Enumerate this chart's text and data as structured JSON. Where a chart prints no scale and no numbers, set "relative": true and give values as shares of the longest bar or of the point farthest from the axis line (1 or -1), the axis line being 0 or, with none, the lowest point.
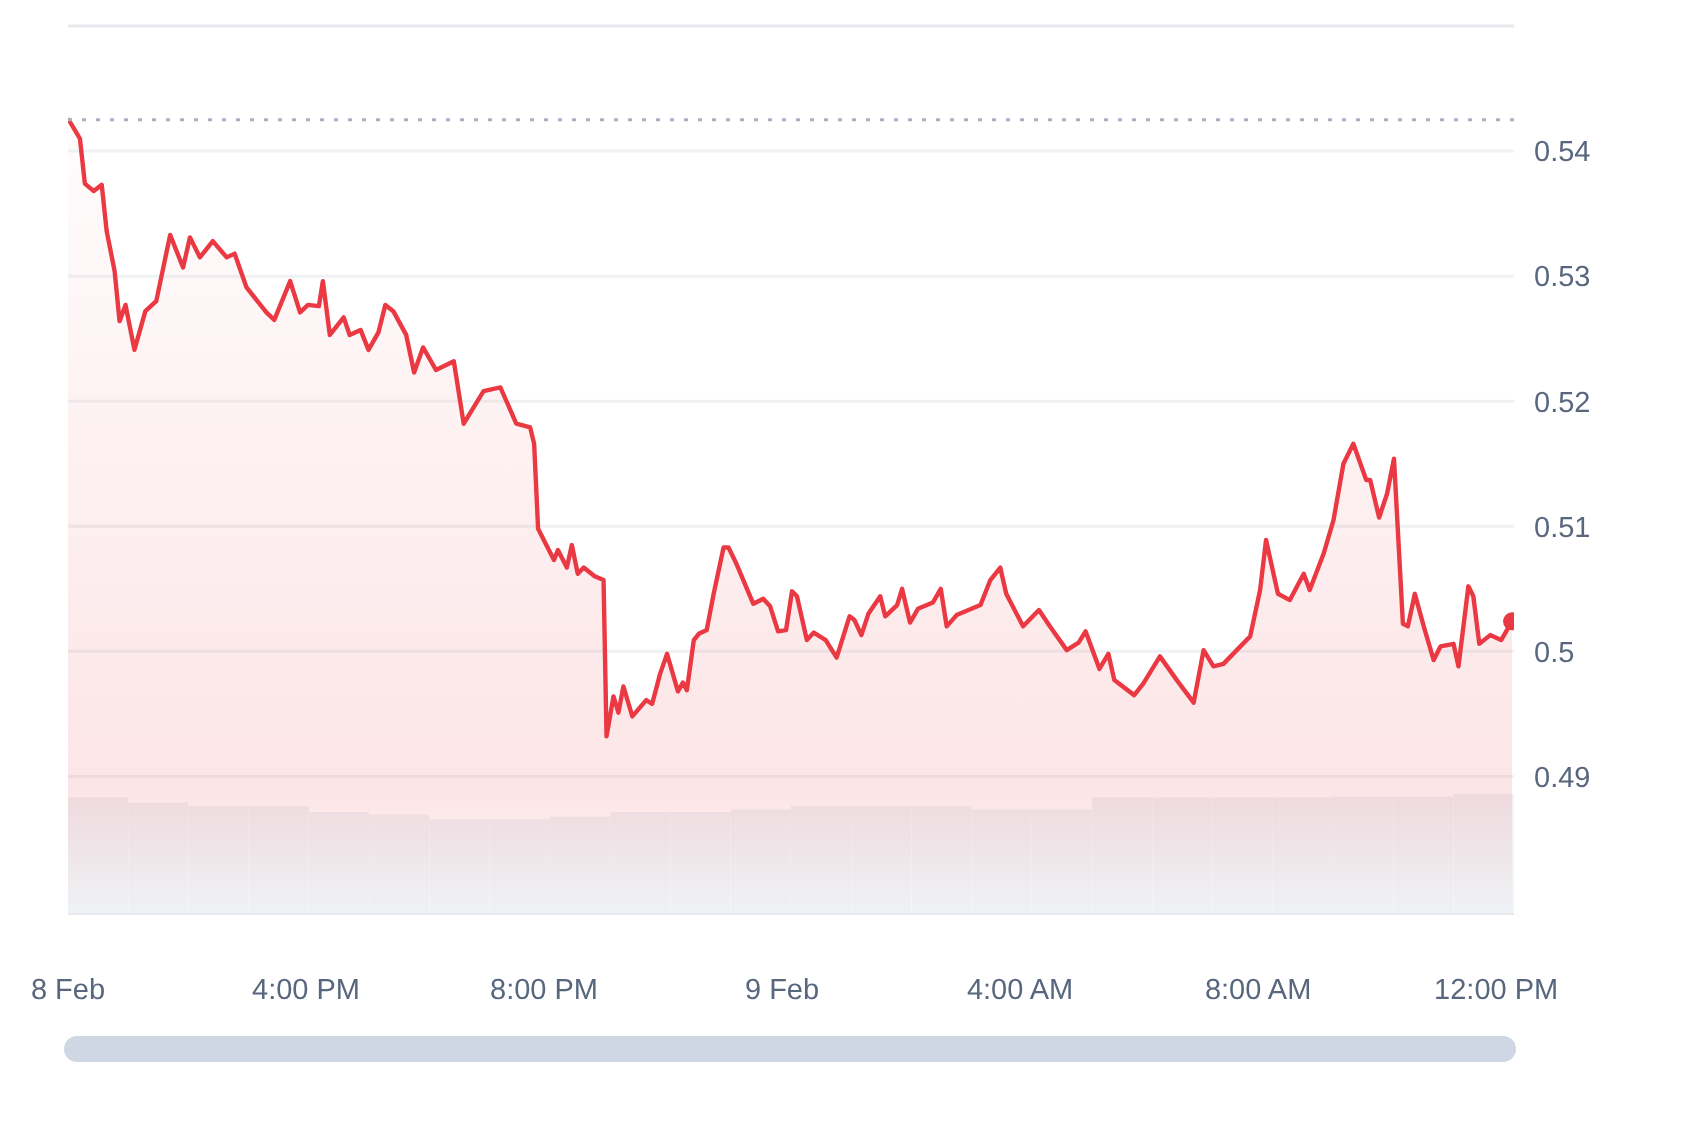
{
  "chart_data": [
    {
      "type": "area",
      "x": [
        "--02-08T12:00",
        "--02-08T12:12",
        "--02-08T12:17",
        "--02-08T12:26",
        "--02-08T12:34",
        "--02-08T12:39",
        "--02-08T12:47",
        "--02-08T12:52",
        "--02-08T12:58",
        "--02-08T13:07",
        "--02-08T13:18",
        "--02-08T13:29",
        "--02-08T13:43",
        "--02-08T13:56",
        "--02-08T14:03",
        "--02-08T14:13",
        "--02-08T14:26",
        "--02-08T14:40",
        "--02-08T14:48",
        "--02-08T15:00",
        "--02-08T15:20",
        "--02-08T15:28",
        "--02-08T15:44",
        "--02-08T15:54",
        "--02-08T16:02",
        "--02-08T16:13",
        "--02-08T16:17",
        "--02-08T16:24",
        "--02-08T16:38",
        "--02-08T16:44",
        "--02-08T16:55",
        "--02-08T17:03",
        "--02-08T17:13",
        "--02-08T17:20",
        "--02-08T17:28",
        "--02-08T17:41",
        "--02-08T17:49",
        "--02-08T17:58",
        "--02-08T18:11",
        "--02-08T18:29",
        "--02-08T18:39",
        "--02-08T18:59",
        "--02-08T19:16",
        "--02-08T19:32",
        "--02-08T19:46",
        "--02-08T19:50",
        "--02-08T19:54",
        "--02-08T20:10",
        "--02-08T20:14",
        "--02-08T20:23",
        "--02-08T20:28",
        "--02-08T20:34",
        "--02-08T20:40",
        "--02-08T20:51",
        "--02-08T21:00",
        "--02-08T21:03",
        "--02-08T21:10",
        "--02-08T21:15",
        "--02-08T21:20",
        "--02-08T21:29",
        "--02-08T21:43",
        "--02-08T21:49",
        "--02-08T21:57",
        "--02-08T22:04",
        "--02-08T22:15",
        "--02-08T22:20",
        "--02-08T22:24",
        "--02-08T22:31",
        "--02-08T22:36",
        "--02-08T22:44",
        "--02-08T22:51",
        "--02-08T23:01",
        "--02-08T23:06",
        "--02-08T23:14",
        "--02-08T23:31",
        "--02-08T23:41",
        "--02-08T23:48",
        "--02-08T23:56",
        "--02-09T00:04",
        "--02-09T00:10",
        "--02-09T00:15",
        "--02-09T00:25",
        "--02-09T00:32",
        "--02-09T00:44",
        "--02-09T00:55",
        "--02-09T01:08",
        "--02-09T01:13",
        "--02-09T01:20",
        "--02-09T01:27",
        "--02-09T01:39",
        "--02-09T01:44",
        "--02-09T01:56",
        "--02-09T02:01",
        "--02-09T02:09",
        "--02-09T02:17",
        "--02-09T02:32",
        "--02-09T02:40",
        "--02-09T02:46",
        "--02-09T02:56",
        "--02-09T03:20",
        "--02-09T03:30",
        "--02-09T03:40",
        "--02-09T03:46",
        "--02-09T04:03",
        "--02-09T04:19",
        "--02-09T04:30",
        "--02-09T04:47",
        "--02-09T04:59",
        "--02-09T05:06",
        "--02-09T05:20",
        "--02-09T05:29",
        "--02-09T05:35",
        "--02-09T05:55",
        "--02-09T06:04",
        "--02-09T06:21",
        "--02-09T06:38",
        "--02-09T06:55",
        "--02-09T07:05",
        "--02-09T07:15",
        "--02-09T07:25",
        "--02-09T07:52",
        "--02-09T08:02",
        "--02-09T08:08",
        "--02-09T08:20",
        "--02-09T08:32",
        "--02-09T08:46",
        "--02-09T08:52",
        "--02-09T09:06",
        "--02-09T09:16",
        "--02-09T09:26",
        "--02-09T09:36",
        "--02-09T09:49",
        "--02-09T09:53",
        "--02-09T10:02",
        "--02-09T10:10",
        "--02-09T10:17",
        "--02-09T10:26",
        "--02-09T10:31",
        "--02-09T10:38",
        "--02-09T10:47",
        "--02-09T10:57",
        "--02-09T11:04",
        "--02-09T11:17",
        "--02-09T11:22",
        "--02-09T11:32",
        "--02-09T11:37",
        "--02-09T11:43",
        "--02-09T11:54",
        "--02-09T12:05",
        "--02-09T12:16"
      ],
      "series": [
        {
          "color": "#ea3943",
          "values": [
            0.5426,
            0.541,
            0.5374,
            0.5368,
            0.5373,
            0.5336,
            0.5304,
            0.5264,
            0.5277,
            0.5241,
            0.5272,
            0.528,
            0.5333,
            0.5307,
            0.5331,
            0.5315,
            0.5328,
            0.5315,
            0.5318,
            0.5291,
            0.5271,
            0.5265,
            0.5296,
            0.5271,
            0.5277,
            0.5276,
            0.5296,
            0.5253,
            0.5267,
            0.5253,
            0.5257,
            0.5241,
            0.5255,
            0.5277,
            0.5272,
            0.5253,
            0.5223,
            0.5243,
            0.5225,
            0.5232,
            0.5182,
            0.5208,
            0.5211,
            0.5182,
            0.5179,
            0.5166,
            0.5098,
            0.5073,
            0.5081,
            0.5067,
            0.5085,
            0.5062,
            0.5067,
            0.506,
            0.5057,
            0.4932,
            0.4964,
            0.4951,
            0.4972,
            0.4948,
            0.4961,
            0.4958,
            0.4982,
            0.4998,
            0.4968,
            0.4975,
            0.4969,
            0.5009,
            0.5014,
            0.5017,
            0.5046,
            0.5083,
            0.5083,
            0.507,
            0.5038,
            0.5042,
            0.5036,
            0.5016,
            0.5017,
            0.5048,
            0.5044,
            0.5009,
            0.5015,
            0.5009,
            0.4995,
            0.5028,
            0.5025,
            0.5013,
            0.503,
            0.5044,
            0.5028,
            0.5037,
            0.505,
            0.5023,
            0.5034,
            0.5039,
            0.505,
            0.502,
            0.5029,
            0.5037,
            0.5057,
            0.5067,
            0.5046,
            0.502,
            0.5033,
            0.502,
            0.5001,
            0.5007,
            0.5016,
            0.4986,
            0.4998,
            0.4977,
            0.4965,
            0.4974,
            0.4996,
            0.4977,
            0.4959,
            0.5001,
            0.4988,
            0.499,
            0.5012,
            0.5049,
            0.5089,
            0.5046,
            0.5041,
            0.5062,
            0.5049,
            0.5078,
            0.5105,
            0.515,
            0.5166,
            0.5137,
            0.5137,
            0.5107,
            0.5126,
            0.5154,
            0.5022,
            0.502,
            0.5046,
            0.502,
            0.4993,
            0.5004,
            0.5006,
            0.4988,
            0.5052,
            0.5044,
            0.5006,
            0.5013,
            0.5009,
            0.5024
          ]
        }
      ],
      "xlim": [
        "--02-08T12:00",
        "--02-09T12:18"
      ],
      "xticks": [
        {
          "value": "--02-08T12:00",
          "label": "8 Feb"
        },
        {
          "value": "--02-08T16:00",
          "label": "4:00 PM"
        },
        {
          "value": "--02-08T20:00",
          "label": "8:00 PM"
        },
        {
          "value": "--02-09T00:00",
          "label": "9 Feb"
        },
        {
          "value": "--02-09T04:00",
          "label": "4:00 AM"
        },
        {
          "value": "--02-09T08:00",
          "label": "8:00 AM"
        },
        {
          "value": "--02-09T12:00",
          "label": "12:00 PM"
        }
      ],
      "ylim": [
        0.479,
        0.55
      ],
      "yticks": [
        0.49,
        0.5,
        0.51,
        0.52,
        0.53,
        0.54
      ],
      "grid": "y",
      "marker": "none",
      "line_style": "solid",
      "ref_lines": [
        {
          "axis": "y",
          "value": 0.5425,
          "color": "#a6b0c3",
          "line_style": "dotted"
        }
      ]
    },
    {
      "type": "bar",
      "relative": true,
      "categories": [
        null,
        null,
        null,
        null,
        null,
        null,
        null,
        null,
        null,
        null,
        null,
        null,
        null,
        null,
        null,
        null,
        null,
        null,
        null,
        null,
        null,
        null,
        null,
        null
      ],
      "color": "#eff2f5",
      "values": [
        0.97,
        0.93,
        0.9,
        0.9,
        0.85,
        0.83,
        0.79,
        0.79,
        0.81,
        0.85,
        0.85,
        0.87,
        0.9,
        0.9,
        0.9,
        0.87,
        0.87,
        0.97,
        0.97,
        0.97,
        0.97,
        0.98,
        0.98,
        1
      ]
    }
  ]
}
